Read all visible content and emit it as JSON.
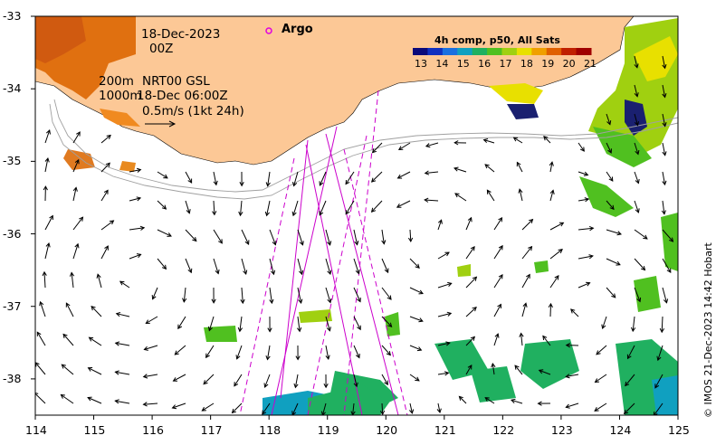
{
  "annotations": {
    "date": "18-Dec-2023",
    "hour": "00Z",
    "contour_200": "200m",
    "contour_1000": "1000m",
    "product": "NRT00 GSL",
    "product_time": "18-Dec 06:00Z",
    "scale_text": "0.5m/s (1kt 24h)",
    "argo_label": "Argo"
  },
  "colorbar": {
    "title": "4h comp, p50, All Sats",
    "ticks": [
      "13",
      "14",
      "15",
      "16",
      "17",
      "18",
      "19",
      "20",
      "21"
    ],
    "colors": [
      "#0a0a7a",
      "#1030c0",
      "#1a70e0",
      "#10a0c0",
      "#20b060",
      "#50c020",
      "#a0d010",
      "#e8e000",
      "#f0a000",
      "#e06000",
      "#c02000",
      "#a00000"
    ]
  },
  "axes": {
    "x_ticks": [
      "114",
      "115",
      "116",
      "117",
      "118",
      "119",
      "120",
      "121",
      "122",
      "123",
      "124",
      "125"
    ],
    "y_ticks": [
      "-33",
      "-34",
      "-35",
      "-36",
      "-37",
      "-38"
    ],
    "x_range": [
      114,
      125
    ],
    "y_range": [
      -33,
      -38.5
    ]
  },
  "colors": {
    "land": "#fcc896",
    "track": "#cc00cc",
    "contour": "#a0a0a0"
  },
  "credit": "© IMOS 21-Dec-2023 14:42 Hobart"
}
